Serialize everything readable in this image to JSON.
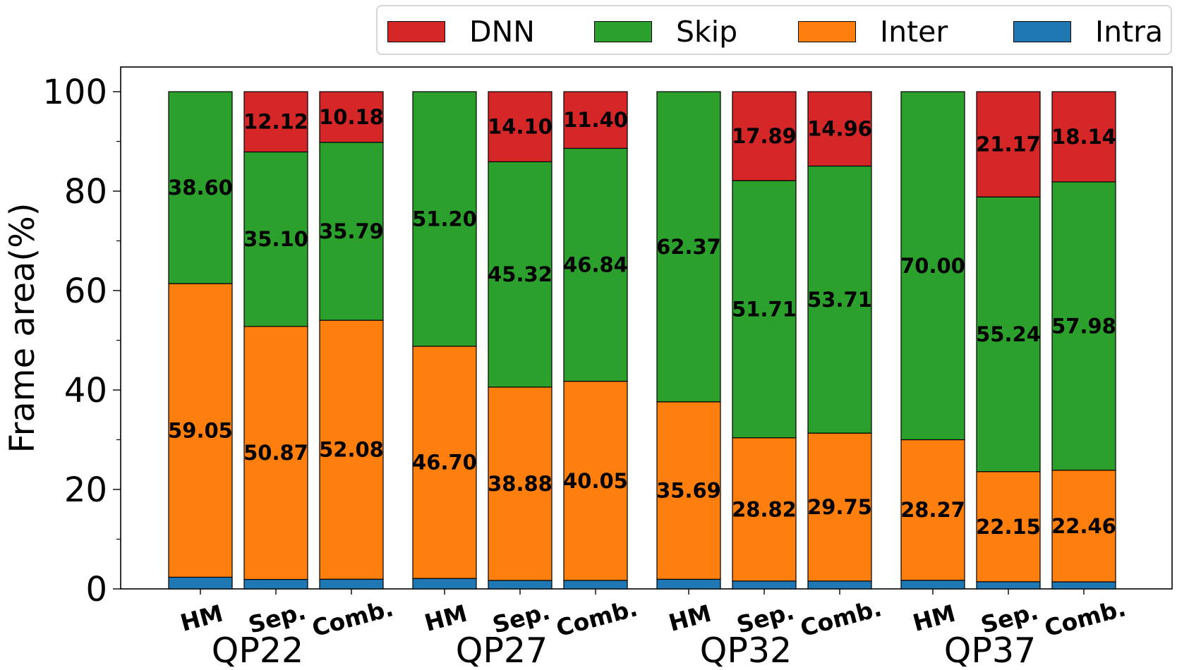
{
  "chart_data": {
    "type": "bar",
    "stacked": true,
    "ylabel": "Frame area(%)",
    "ylim": [
      0,
      105
    ],
    "yticks": [
      "0",
      "20",
      "40",
      "60",
      "80",
      "100"
    ],
    "groups": [
      "QP22",
      "QP27",
      "QP32",
      "QP37"
    ],
    "methods": [
      "HM",
      "Sep.",
      "Comb."
    ],
    "legend_position": "top",
    "legend": [
      {
        "name": "DNN",
        "color": "#d62728"
      },
      {
        "name": "Skip",
        "color": "#2ca02c"
      },
      {
        "name": "Inter",
        "color": "#ff7f0e"
      },
      {
        "name": "Intra",
        "color": "#1f77b4"
      }
    ],
    "series_order": [
      "Intra",
      "Inter",
      "Skip",
      "DNN"
    ],
    "bars": [
      {
        "group": "QP22",
        "method": "HM",
        "values": {
          "Intra": 2.35,
          "Inter": 59.05,
          "Skip": 38.6,
          "DNN": 0
        },
        "labels": {
          "Inter": "59.05",
          "Skip": "38.60"
        }
      },
      {
        "group": "QP22",
        "method": "Sep.",
        "values": {
          "Intra": 1.91,
          "Inter": 50.87,
          "Skip": 35.1,
          "DNN": 12.12
        },
        "labels": {
          "Inter": "50.87",
          "Skip": "35.10",
          "DNN": "12.12"
        }
      },
      {
        "group": "QP22",
        "method": "Comb.",
        "values": {
          "Intra": 1.95,
          "Inter": 52.08,
          "Skip": 35.79,
          "DNN": 10.18
        },
        "labels": {
          "Inter": "52.08",
          "Skip": "35.79",
          "DNN": "10.18"
        }
      },
      {
        "group": "QP27",
        "method": "HM",
        "values": {
          "Intra": 2.1,
          "Inter": 46.7,
          "Skip": 51.2,
          "DNN": 0
        },
        "labels": {
          "Inter": "46.70",
          "Skip": "51.20"
        }
      },
      {
        "group": "QP27",
        "method": "Sep.",
        "values": {
          "Intra": 1.7,
          "Inter": 38.88,
          "Skip": 45.32,
          "DNN": 14.1
        },
        "labels": {
          "Inter": "38.88",
          "Skip": "45.32",
          "DNN": "14.10"
        }
      },
      {
        "group": "QP27",
        "method": "Comb.",
        "values": {
          "Intra": 1.71,
          "Inter": 40.05,
          "Skip": 46.84,
          "DNN": 11.4
        },
        "labels": {
          "Inter": "40.05",
          "Skip": "46.84",
          "DNN": "11.40"
        }
      },
      {
        "group": "QP32",
        "method": "HM",
        "values": {
          "Intra": 1.94,
          "Inter": 35.69,
          "Skip": 62.37,
          "DNN": 0
        },
        "labels": {
          "Inter": "35.69",
          "Skip": "62.37"
        }
      },
      {
        "group": "QP32",
        "method": "Sep.",
        "values": {
          "Intra": 1.58,
          "Inter": 28.82,
          "Skip": 51.71,
          "DNN": 17.89
        },
        "labels": {
          "Inter": "28.82",
          "Skip": "51.71",
          "DNN": "17.89"
        }
      },
      {
        "group": "QP32",
        "method": "Comb.",
        "values": {
          "Intra": 1.58,
          "Inter": 29.75,
          "Skip": 53.71,
          "DNN": 14.96
        },
        "labels": {
          "Inter": "29.75",
          "Skip": "53.71",
          "DNN": "14.96"
        }
      },
      {
        "group": "QP37",
        "method": "HM",
        "values": {
          "Intra": 1.73,
          "Inter": 28.27,
          "Skip": 70.0,
          "DNN": 0
        },
        "labels": {
          "Inter": "28.27",
          "Skip": "70.00"
        }
      },
      {
        "group": "QP37",
        "method": "Sep.",
        "values": {
          "Intra": 1.44,
          "Inter": 22.15,
          "Skip": 55.24,
          "DNN": 21.17
        },
        "labels": {
          "Inter": "22.15",
          "Skip": "55.24",
          "DNN": "21.17"
        }
      },
      {
        "group": "QP37",
        "method": "Comb.",
        "values": {
          "Intra": 1.42,
          "Inter": 22.46,
          "Skip": 57.98,
          "DNN": 18.14
        },
        "labels": {
          "Inter": "22.46",
          "Skip": "57.98",
          "DNN": "18.14"
        }
      }
    ]
  }
}
